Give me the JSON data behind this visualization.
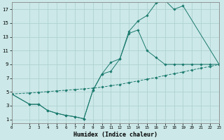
{
  "xlabel": "Humidex (Indice chaleur)",
  "bg_color": "#cce8e8",
  "grid_color": "#aacece",
  "line_color": "#1a7a6e",
  "xlim": [
    0,
    23
  ],
  "ylim": [
    0.5,
    18
  ],
  "xticks": [
    0,
    2,
    3,
    4,
    5,
    6,
    7,
    8,
    9,
    10,
    11,
    12,
    13,
    14,
    15,
    16,
    17,
    18,
    19,
    20,
    21,
    22,
    23
  ],
  "yticks": [
    1,
    3,
    5,
    7,
    9,
    11,
    13,
    15,
    17
  ],
  "line1_x": [
    0,
    2,
    3,
    4,
    5,
    6,
    7,
    8,
    9,
    10,
    11,
    12,
    13,
    14,
    15,
    16,
    17,
    18,
    19,
    20,
    21,
    22,
    23
  ],
  "line1_y": [
    4.7,
    4.85,
    4.95,
    5.05,
    5.15,
    5.25,
    5.35,
    5.45,
    5.55,
    5.7,
    5.9,
    6.1,
    6.35,
    6.6,
    6.85,
    7.1,
    7.4,
    7.65,
    7.9,
    8.2,
    8.45,
    8.7,
    9.0
  ],
  "line2_x": [
    0,
    2,
    3,
    4,
    5,
    6,
    7,
    8,
    9,
    10,
    11,
    12,
    13,
    14,
    15,
    16,
    17,
    18,
    19,
    20,
    21,
    22,
    23
  ],
  "line2_y": [
    4.7,
    3.2,
    3.2,
    2.3,
    1.9,
    1.6,
    1.4,
    1.1,
    5.2,
    7.6,
    8.0,
    9.8,
    13.5,
    14.0,
    11.0,
    10.0,
    9.0,
    9.0,
    9.0,
    9.0,
    9.0,
    9.0,
    9.0
  ],
  "line3_x": [
    0,
    2,
    3,
    4,
    5,
    6,
    7,
    8,
    9,
    10,
    11,
    12,
    13,
    14,
    15,
    16,
    17,
    18,
    19,
    23
  ],
  "line3_y": [
    4.7,
    3.2,
    3.2,
    2.3,
    1.9,
    1.6,
    1.4,
    1.1,
    5.2,
    7.6,
    9.3,
    9.8,
    13.8,
    15.3,
    16.1,
    17.9,
    18.3,
    17.0,
    17.5,
    9.0
  ]
}
